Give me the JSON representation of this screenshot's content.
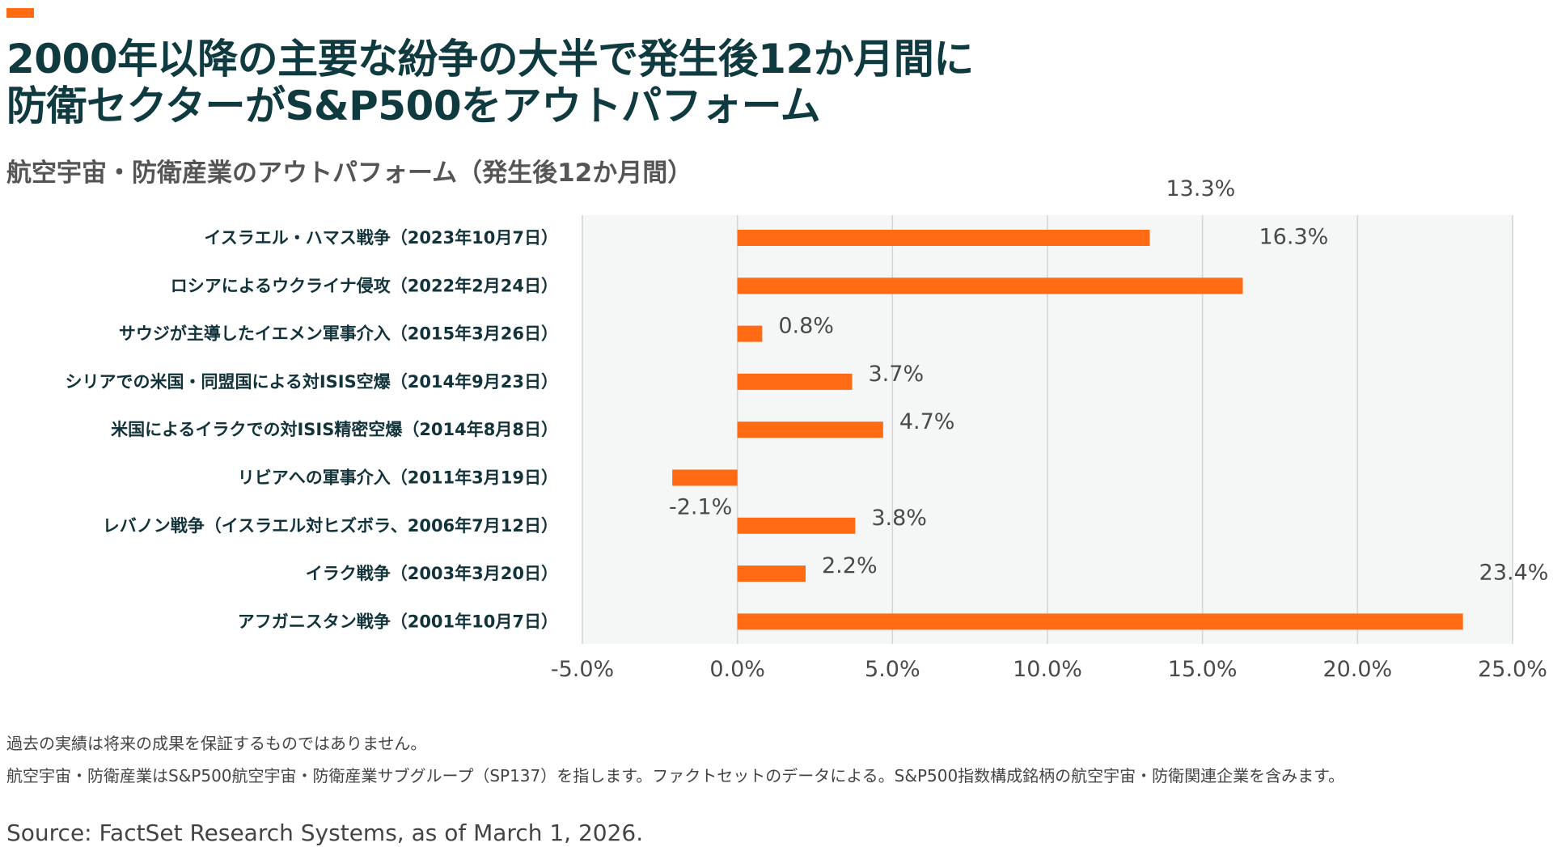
{
  "header": {
    "title_line1": "2000年以降の主要な紛争の大半で発生後12か月間に",
    "title_line2": "防衛セクターがS&P500をアウトパフォーム",
    "subtitle": "航空宇宙・防衛産業のアウトパフォーム（発生後12か月間）"
  },
  "chart_data": {
    "type": "bar",
    "orientation": "horizontal",
    "title": "航空宇宙・防衛産業のアウトパフォーム（発生後12か月間）",
    "xlabel": "",
    "ylabel": "",
    "xlim": [
      -5.0,
      25.0
    ],
    "xticks": [
      "-5.0%",
      "0.0%",
      "5.0%",
      "10.0%",
      "15.0%",
      "20.0%",
      "25.0%"
    ],
    "xtick_values": [
      -5,
      0,
      5,
      10,
      15,
      20,
      25
    ],
    "grid": "vertical",
    "bar_color": "#ff6a13",
    "categories": [
      "イスラエル・ハマス戦争（2023年10月7日）",
      "ロシアによるウクライナ侵攻（2022年2月24日）",
      "サウジが主導したイエメン軍事介入（2015年3月26日）",
      "シリアでの米国・同盟国による対ISIS空爆（2014年9月23日）",
      "米国によるイラクでの対ISIS精密空爆（2014年8月8日）",
      "リビアへの軍事介入（2011年3月19日）",
      "レバノン戦争（イスラエル対ヒズボラ、2006年7月12日）",
      "イラク戦争（2003年3月20日）",
      "アフガニスタン戦争（2001年10月7日）"
    ],
    "values": [
      13.3,
      16.3,
      0.8,
      3.7,
      4.7,
      -2.1,
      3.8,
      2.2,
      23.4
    ],
    "data_labels": [
      "13.3%",
      "16.3%",
      "0.8%",
      "3.7%",
      "4.7%",
      "-2.1%",
      "3.8%",
      "2.2%",
      "23.4%"
    ]
  },
  "footer": {
    "note1": "過去の実績は将来の成果を保証するものではありません。",
    "note2": "航空宇宙・防衛産業はS&P500航空宇宙・防衛産業サブグループ（SP137）を指します。ファクトセットのデータによる。S&P500指数構成銘柄の航空宇宙・防衛関連企業を含みます。",
    "source": "Source: FactSet Research Systems, as of March 1, 2026."
  }
}
